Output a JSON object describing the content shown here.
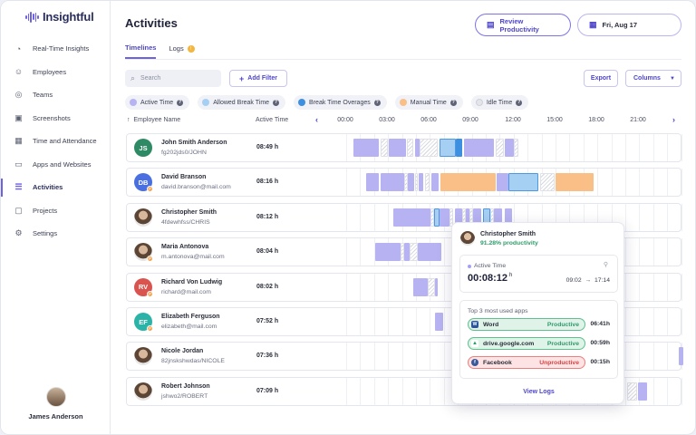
{
  "app": {
    "name": "Insightful"
  },
  "sidebar": {
    "items": [
      {
        "label": "Real-Time Insights",
        "icon": "speedometer-icon",
        "glyph": "◔"
      },
      {
        "label": "Employees",
        "icon": "people-icon",
        "glyph": "☺"
      },
      {
        "label": "Teams",
        "icon": "teams-icon",
        "glyph": "◎"
      },
      {
        "label": "Screenshots",
        "icon": "image-icon",
        "glyph": "▣"
      },
      {
        "label": "Time and Attendance",
        "icon": "calendar-icon",
        "glyph": "▦"
      },
      {
        "label": "Apps and Websites",
        "icon": "monitor-icon",
        "glyph": "▭"
      },
      {
        "label": "Activities",
        "icon": "list-icon",
        "glyph": "☰"
      },
      {
        "label": "Projects",
        "icon": "briefcase-icon",
        "glyph": "▢"
      },
      {
        "label": "Settings",
        "icon": "gear-icon",
        "glyph": "⚙"
      }
    ],
    "active_index": 6,
    "user": {
      "name": "James Anderson"
    }
  },
  "header": {
    "title": "Activities",
    "review_label": "Review Productivity",
    "date_label": "Fri, Aug 17"
  },
  "tabs": [
    {
      "label": "Timelines"
    },
    {
      "label": "Logs",
      "badge": "!"
    }
  ],
  "toolbar": {
    "search_placeholder": "Search",
    "add_filter": "Add Filter",
    "export": "Export",
    "columns": "Columns"
  },
  "legend": [
    {
      "label": "Active Time",
      "color": "#b7b3f3"
    },
    {
      "label": "Allowed Break Time",
      "color": "#a6cff4"
    },
    {
      "label": "Break Time Overages",
      "color": "#3d8fe0"
    },
    {
      "label": "Manual Time",
      "color": "#f9bf86"
    },
    {
      "label": "Idle Time",
      "color": "#e4e5ea"
    }
  ],
  "table": {
    "col_employee": "Employee Name",
    "col_active": "Active Time",
    "hours": [
      "00:00",
      "03:00",
      "06:00",
      "09:00",
      "12:00",
      "15:00",
      "18:00",
      "21:00"
    ]
  },
  "employees": [
    {
      "name": "John Smith Anderson",
      "sub": "fg202jds0/JOHN",
      "initials": "JS",
      "avatar_color": "#2d8a64",
      "photo": false,
      "badge": "",
      "active_time": "08:49 h",
      "segments": [
        [
          "a",
          0,
          21
        ],
        [
          "i",
          22,
          28
        ],
        [
          "a",
          29,
          43
        ],
        [
          "i",
          44,
          49
        ],
        [
          "a",
          50,
          54
        ],
        [
          "i",
          54,
          69
        ],
        [
          "l",
          70,
          84
        ],
        [
          "o",
          84,
          89
        ],
        [
          "a",
          90,
          115
        ],
        [
          "i",
          116,
          123
        ],
        [
          "a",
          124,
          131
        ],
        [
          "i",
          131,
          135
        ]
      ]
    },
    {
      "name": "David Branson",
      "sub": "david.branson@mail.com",
      "initials": "DB",
      "avatar_color": "#4a6fe0",
      "photo": false,
      "badge": "P",
      "active_time": "08:16 h",
      "segments": [
        [
          "a",
          0,
          10
        ],
        [
          "a",
          12,
          31
        ],
        [
          "i",
          31,
          34
        ],
        [
          "a",
          34,
          39
        ],
        [
          "i",
          40,
          42
        ],
        [
          "a",
          43,
          47
        ],
        [
          "i",
          48,
          52
        ],
        [
          "a",
          53,
          59
        ],
        [
          "m",
          61,
          106
        ],
        [
          "a",
          107,
          116
        ],
        [
          "l",
          116,
          141
        ],
        [
          "i",
          142,
          154
        ],
        [
          "m",
          155,
          186
        ]
      ]
    },
    {
      "name": "Christopher Smith",
      "sub": "4fdewhfss/CHRIS",
      "initials": "CS",
      "avatar_color": "#888",
      "photo": true,
      "badge": "",
      "active_time": "08:12 h",
      "segments": [
        [
          "a",
          0,
          30
        ],
        [
          "i",
          30,
          33
        ],
        [
          "l",
          33,
          38
        ],
        [
          "a",
          38,
          46
        ],
        [
          "i",
          46,
          49
        ],
        [
          "a",
          50,
          56
        ],
        [
          "i",
          56,
          59
        ],
        [
          "a",
          59,
          62
        ],
        [
          "i",
          62,
          65
        ],
        [
          "a",
          65,
          72
        ],
        [
          "l",
          73,
          79
        ],
        [
          "i",
          79,
          82
        ],
        [
          "a",
          82,
          89
        ],
        [
          "a",
          91,
          97
        ]
      ]
    },
    {
      "name": "Maria Antonova",
      "sub": "m.antonova@mail.com",
      "initials": "MA",
      "avatar_color": "#888",
      "photo": true,
      "badge": "P",
      "active_time": "08:04 h",
      "segments": [
        [
          "a",
          0,
          21
        ],
        [
          "i",
          21,
          24
        ],
        [
          "a",
          24,
          28
        ],
        [
          "i",
          28,
          35
        ],
        [
          "a",
          35,
          54
        ]
      ]
    },
    {
      "name": "Richard Von Ludwig",
      "sub": "richard@mail.com",
      "initials": "RV",
      "avatar_color": "#d9534f",
      "photo": false,
      "badge": "P",
      "active_time": "08:02 h",
      "segments": [
        [
          "a",
          0,
          12
        ],
        [
          "i",
          12,
          18
        ],
        [
          "a",
          18,
          20
        ]
      ]
    },
    {
      "name": "Elizabeth Ferguson",
      "sub": "elizabeth@mail.com",
      "initials": "EF",
      "avatar_color": "#2bb3a8",
      "photo": false,
      "badge": "P",
      "active_time": "07:52 h",
      "segments": [
        [
          "a",
          0,
          7
        ]
      ]
    },
    {
      "name": "Nicole Jordan",
      "sub": "82jnskshwdas/NICOLE",
      "initials": "NJ",
      "avatar_color": "#888",
      "photo": true,
      "badge": "",
      "active_time": "07:36 h",
      "segments": [
        [
          "a",
          131,
          135
        ]
      ]
    },
    {
      "name": "Robert Johnson",
      "sub": "jshwo2/ROBERT",
      "initials": "RJ",
      "avatar_color": "#888",
      "photo": true,
      "badge": "",
      "active_time": "07:09 h",
      "segments": [
        [
          "i",
          0,
          8
        ],
        [
          "a",
          9,
          16
        ]
      ]
    }
  ],
  "popover": {
    "name": "Christopher Smith",
    "productivity": "91.28% productivity",
    "active_label": "Active Time",
    "active_value": "00:08:12",
    "active_unit": "h",
    "range_start": "09:02",
    "range_arrow": "→",
    "range_end": "17:14",
    "apps_title": "Top 3 most used apps",
    "apps": [
      {
        "name": "Word",
        "status": "Productive",
        "time": "06:41h",
        "kind": "prod",
        "icon": "word-icon",
        "icon_color": "#2b579a",
        "glyph": "W"
      },
      {
        "name": "drive.google.com",
        "status": "Productive",
        "time": "00:59h",
        "kind": "prod",
        "icon": "drive-icon",
        "icon_color": "#1fa463",
        "glyph": "▲"
      },
      {
        "name": "Facebook",
        "status": "Unproductive",
        "time": "00:15h",
        "kind": "unprod",
        "icon": "facebook-icon",
        "icon_color": "#3b5998",
        "glyph": "f"
      }
    ],
    "view_logs": "View Logs"
  }
}
